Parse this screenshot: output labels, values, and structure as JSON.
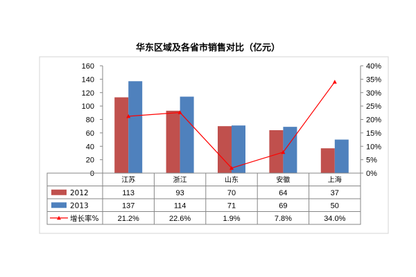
{
  "chart_data": {
    "type": "bar",
    "title": "华东区域及各省市销售对比（亿元）",
    "categories": [
      "江苏",
      "浙江",
      "山东",
      "安徽",
      "上海"
    ],
    "series": [
      {
        "name": "2012",
        "type": "bar",
        "values": [
          113,
          93,
          70,
          64,
          37
        ],
        "labels": [
          "113",
          "93",
          "70",
          "64",
          "37"
        ],
        "color": "#c0504d"
      },
      {
        "name": "2013",
        "type": "bar",
        "values": [
          137,
          114,
          71,
          69,
          50
        ],
        "labels": [
          "137",
          "114",
          "71",
          "69",
          "50"
        ],
        "color": "#4f81bd"
      },
      {
        "name": "增长率%",
        "type": "line",
        "axis": "right",
        "values": [
          21.2,
          22.6,
          1.9,
          7.8,
          34.0
        ],
        "labels": [
          "21.2%",
          "22.6%",
          "1.9%",
          "7.8%",
          "34.0%"
        ],
        "color": "#ff0000"
      }
    ],
    "left_axis": {
      "ylim": [
        0,
        160
      ],
      "ticks": [
        "0",
        "20",
        "40",
        "60",
        "80",
        "100",
        "120",
        "140",
        "160"
      ]
    },
    "right_axis": {
      "ylim": [
        0,
        40
      ],
      "ticks": [
        "0%",
        "5%",
        "10%",
        "15%",
        "20%",
        "25%",
        "30%",
        "35%",
        "40%"
      ]
    },
    "grid": false,
    "legend": "data-table",
    "xlabel": "",
    "ylabel": ""
  }
}
